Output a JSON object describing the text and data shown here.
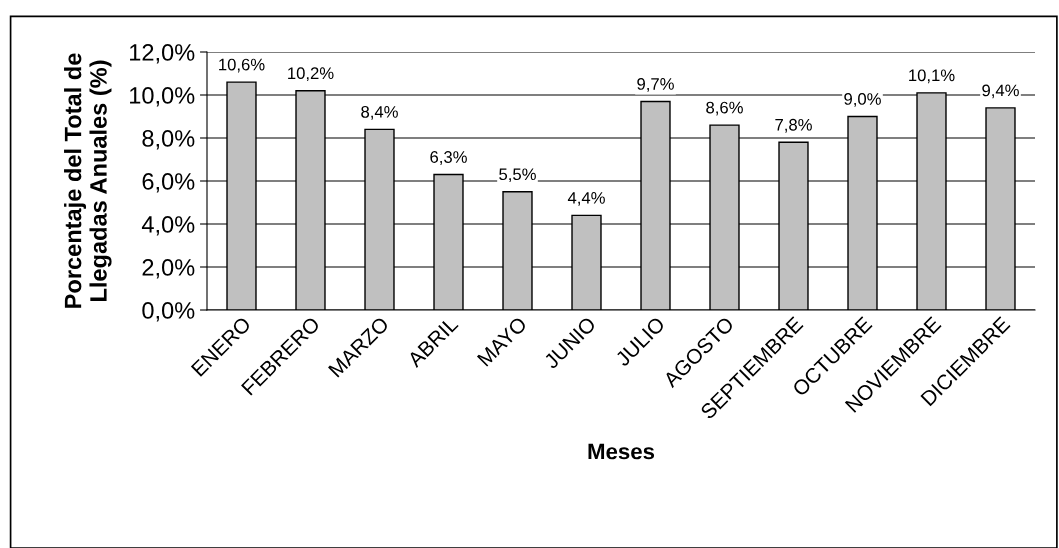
{
  "chart_data": {
    "type": "bar",
    "xlabel": "Meses",
    "ylabel": "Porcentaje del Total de\nLlegadas Anuales (%)",
    "categories": [
      "ENERO",
      "FEBRERO",
      "MARZO",
      "ABRIL",
      "MAYO",
      "JUNIO",
      "JULIO",
      "AGOSTO",
      "SEPTIEMBRE",
      "OCTUBRE",
      "NOVIEMBRE",
      "DICIEMBRE"
    ],
    "values": [
      10.6,
      10.2,
      8.4,
      6.3,
      5.5,
      4.4,
      9.7,
      8.6,
      7.8,
      9.0,
      10.1,
      9.4
    ],
    "value_labels": [
      "10,6%",
      "10,2%",
      "8,4%",
      "6,3%",
      "5,5%",
      "4,4%",
      "9,7%",
      "8,6%",
      "7,8%",
      "9,0%",
      "10,1%",
      "9,4%"
    ],
    "color": "#c0c0c0",
    "ylim": [
      0,
      12
    ],
    "yticks": [
      {
        "value": 0,
        "label": "0,0%"
      },
      {
        "value": 2,
        "label": "2,0%"
      },
      {
        "value": 4,
        "label": "4,0%"
      },
      {
        "value": 6,
        "label": "6,0%"
      },
      {
        "value": 8,
        "label": "8,0%"
      },
      {
        "value": 10,
        "label": "10,0%"
      },
      {
        "value": 12,
        "label": "12,0%"
      }
    ],
    "grid": "y"
  }
}
